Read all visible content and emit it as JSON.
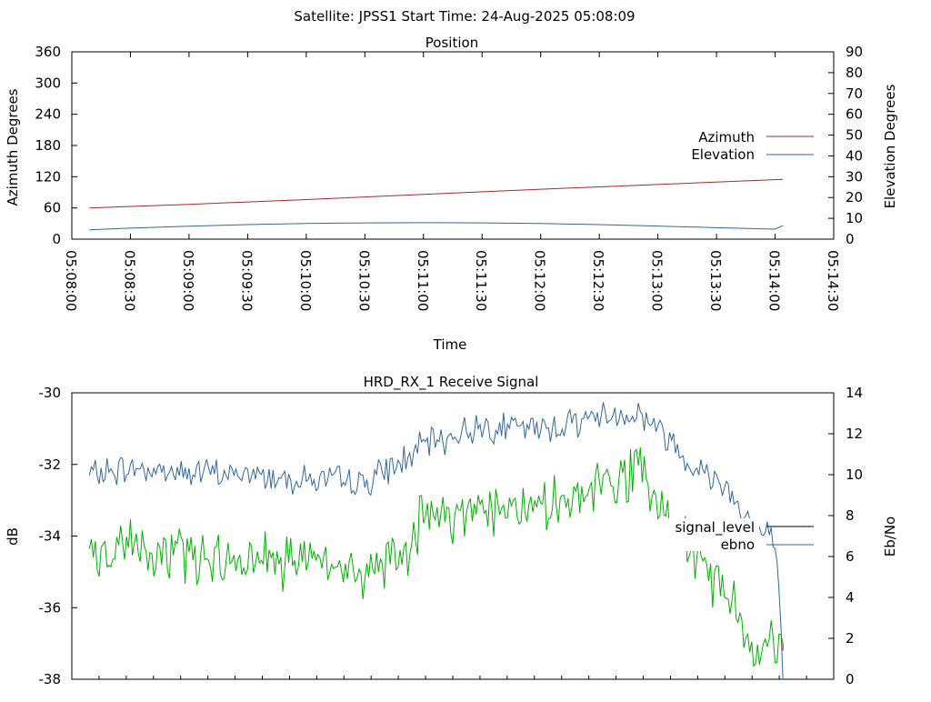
{
  "header": {
    "title": "Satellite: JPSS1    Start Time: 24-Aug-2025 05:08:09"
  },
  "colors": {
    "azimuth": "#a52a2a",
    "elevation": "#336699",
    "signal_level": "#000000",
    "ebno_line": "#336699",
    "signal_trace": "#00b000",
    "signal_end": "#cc0000"
  },
  "chart_data": [
    {
      "type": "line",
      "title": "Position",
      "xlabel": "Time",
      "ylabel": "Azimuth Degrees",
      "y2label": "Elevation Degrees",
      "x_ticks": [
        "05:08:00",
        "05:08:30",
        "05:09:00",
        "05:09:30",
        "05:10:00",
        "05:10:30",
        "05:11:00",
        "05:11:30",
        "05:12:00",
        "05:12:30",
        "05:13:00",
        "05:13:30",
        "05:14:00",
        "05:14:30"
      ],
      "x_range": [
        "05:08:00",
        "05:14:30"
      ],
      "ylim": [
        0,
        360
      ],
      "y_ticks": [
        0,
        60,
        120,
        180,
        240,
        300,
        360
      ],
      "y2lim": [
        0,
        90
      ],
      "y2_ticks": [
        0,
        10,
        20,
        30,
        40,
        50,
        60,
        70,
        80,
        90
      ],
      "grid": false,
      "legend": "right",
      "series": [
        {
          "name": "Azimuth",
          "axis": "left",
          "x": [
            "05:08:09",
            "05:09:00",
            "05:10:00",
            "05:11:00",
            "05:12:00",
            "05:13:00",
            "05:14:04"
          ],
          "y": [
            60,
            67,
            76,
            86,
            96,
            105,
            115
          ]
        },
        {
          "name": "Elevation",
          "axis": "right",
          "x": [
            "05:08:09",
            "05:08:30",
            "05:09:00",
            "05:09:30",
            "05:10:00",
            "05:10:30",
            "05:11:00",
            "05:11:30",
            "05:12:00",
            "05:12:30",
            "05:13:00",
            "05:13:30",
            "05:14:00",
            "05:14:04"
          ],
          "y": [
            4.5,
            5.3,
            6.2,
            7.0,
            7.5,
            7.8,
            7.9,
            7.8,
            7.5,
            7.0,
            6.3,
            5.5,
            4.8,
            6.5
          ]
        }
      ]
    },
    {
      "type": "line",
      "title": "HRD_RX_1 Receive Signal",
      "ylabel": "dB",
      "y2label": "Eb/No",
      "ylim": [
        -38,
        -30
      ],
      "y_ticks": [
        -38,
        -36,
        -34,
        -32,
        -30
      ],
      "y2lim": [
        0,
        14
      ],
      "y2_ticks": [
        0,
        2,
        4,
        6,
        8,
        10,
        12,
        14
      ],
      "x_range": [
        "05:08:00",
        "05:14:30"
      ],
      "minor_ticks": 28,
      "grid": false,
      "legend": "right",
      "series": [
        {
          "name": "signal_level",
          "axis": "left",
          "x": [
            "05:08:09",
            "05:08:30",
            "05:09:00",
            "05:09:30",
            "05:10:00",
            "05:10:30",
            "05:10:50",
            "05:11:00",
            "05:11:30",
            "05:12:00",
            "05:12:30",
            "05:12:50",
            "05:13:00",
            "05:13:20",
            "05:13:40",
            "05:13:50",
            "05:14:00",
            "05:14:04"
          ],
          "y": [
            -34.7,
            -34.3,
            -34.5,
            -34.6,
            -34.8,
            -35.0,
            -34.5,
            -33.6,
            -33.1,
            -33.3,
            -32.7,
            -32.2,
            -33.3,
            -34.6,
            -36.0,
            -37.0,
            -37.2,
            -37.0
          ]
        },
        {
          "name": "ebno",
          "axis": "right",
          "x": [
            "05:08:09",
            "05:08:30",
            "05:09:00",
            "05:09:30",
            "05:10:00",
            "05:10:30",
            "05:10:50",
            "05:11:00",
            "05:11:30",
            "05:12:00",
            "05:12:30",
            "05:12:50",
            "05:13:00",
            "05:13:20",
            "05:13:35",
            "05:13:50",
            "05:14:00",
            "05:14:03",
            "05:14:04"
          ],
          "y": [
            10.0,
            10.3,
            10.1,
            10.0,
            9.8,
            9.6,
            10.7,
            11.4,
            12.4,
            12.2,
            12.9,
            13.0,
            12.3,
            10.3,
            9.5,
            7.3,
            6.9,
            2.0,
            0
          ]
        }
      ]
    }
  ]
}
